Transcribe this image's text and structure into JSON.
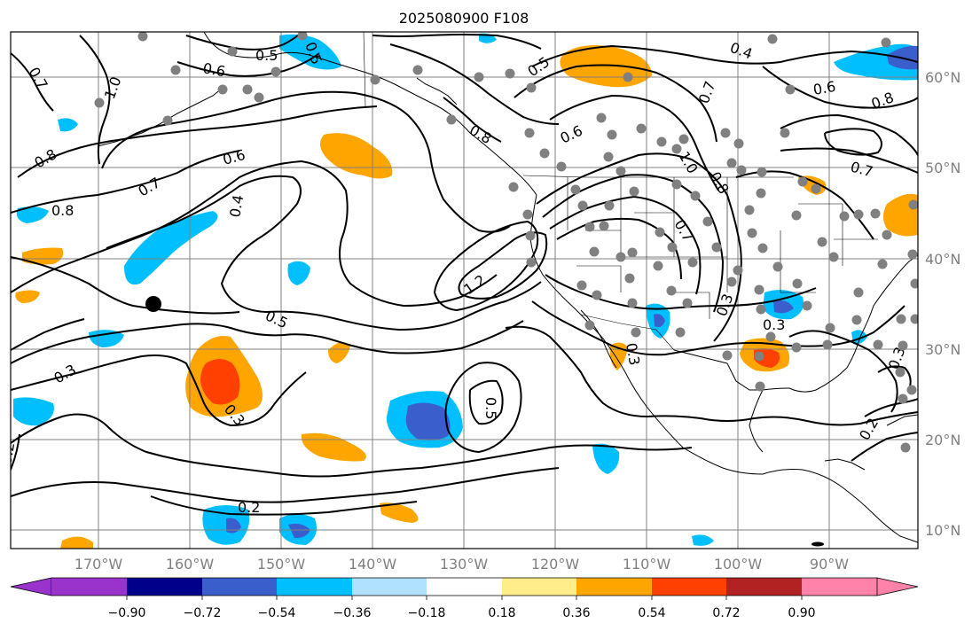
{
  "title": "2025080900 F108",
  "map": {
    "lon_ticks": [
      "170°W",
      "160°W",
      "150°W",
      "140°W",
      "130°W",
      "120°W",
      "110°W",
      "100°W",
      "90°W"
    ],
    "lat_ticks": [
      "60°N",
      "50°N",
      "40°N",
      "30°N",
      "20°N",
      "10°N"
    ],
    "contour_labels": [
      "0.7",
      "0.5",
      "0.6",
      "1.0",
      "0.8",
      "0.7",
      "0.8",
      "0.6",
      "0.4",
      "0.5",
      "0.6",
      "0.8",
      "0.4",
      "0.6",
      "0.8",
      "0.7",
      "0.7",
      "1.0",
      "0.8",
      "1.2",
      "0.5",
      "0.3",
      "0.3",
      "0.2",
      "0.2",
      "0.5",
      "0.3",
      "0.3",
      "0.3",
      "0.2",
      "0.3",
      "0.5",
      "0.7"
    ],
    "colors": {
      "contour": "#000000",
      "grid": "#808080",
      "coast": "#000000",
      "station": "#808080"
    }
  },
  "colorbar": {
    "tick_labels": [
      "−0.90",
      "−0.72",
      "−0.54",
      "−0.36",
      "−0.18",
      "0.18",
      "0.36",
      "0.54",
      "0.72",
      "0.90"
    ],
    "colors": [
      "#9933cc",
      "#00008b",
      "#3a5fcd",
      "#00bfff",
      "#b0e2ff",
      "#ffffff",
      "#ffec8b",
      "#ffa500",
      "#ff4000",
      "#b22222",
      "#ff82ab"
    ]
  }
}
